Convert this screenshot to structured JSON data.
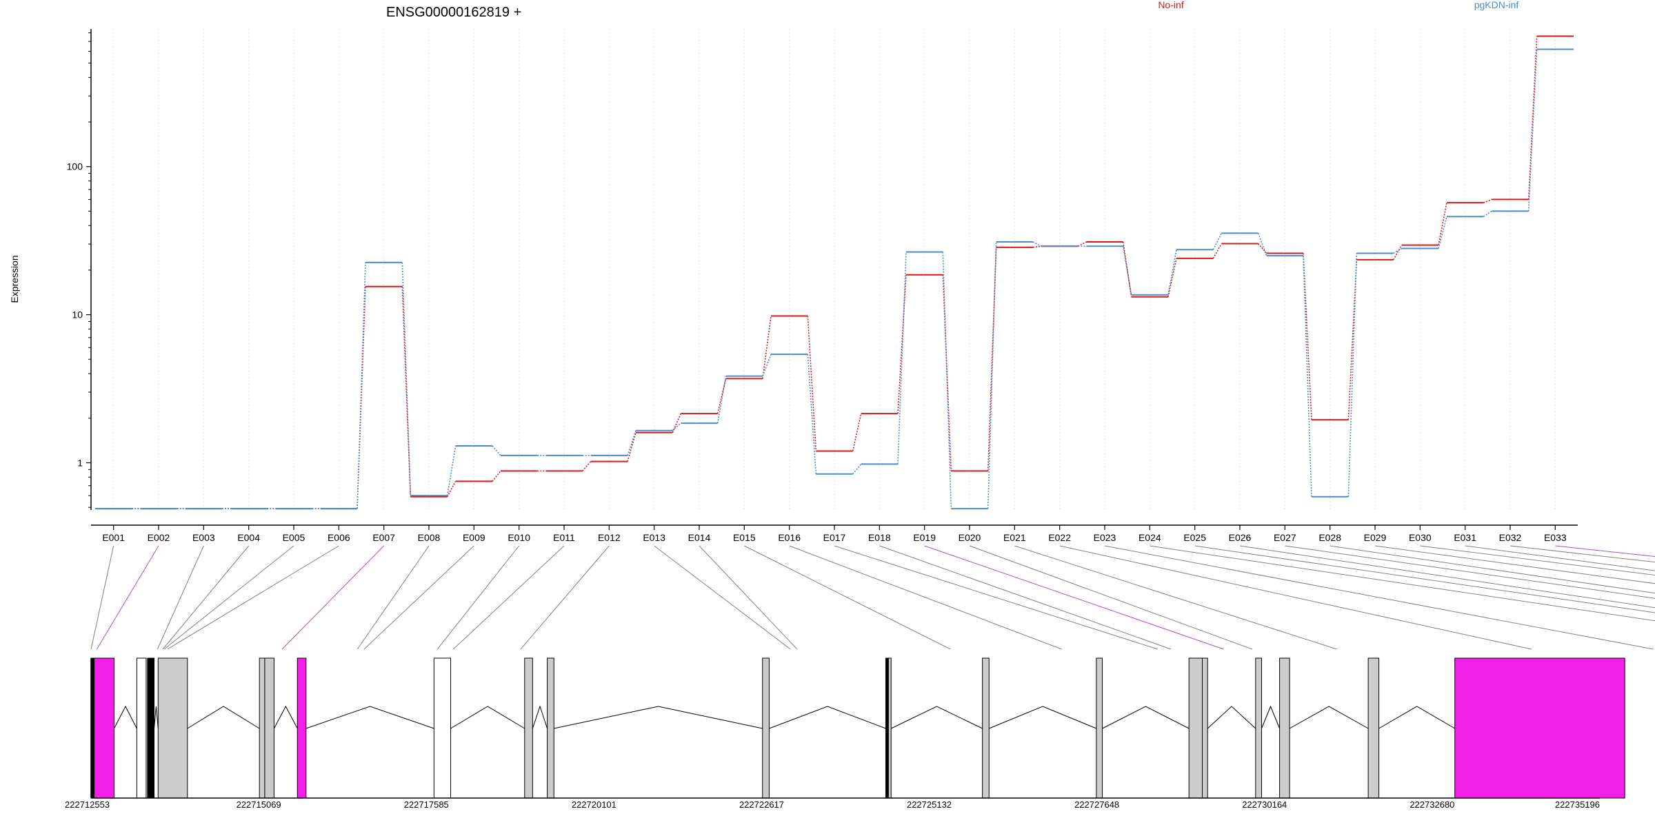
{
  "chart_data": {
    "type": "line",
    "title": "ENSG00000162819 +",
    "ylabel": "Expression",
    "xlabel": "",
    "yscale": "log",
    "ylim": [
      0.48,
      850
    ],
    "y_ticks": [
      {
        "value": 1,
        "label": "1"
      },
      {
        "value": 10,
        "label": "10"
      },
      {
        "value": 100,
        "label": "100"
      }
    ],
    "grid": "vertical dotted",
    "legend_placement": "top-right",
    "categories": [
      "E001",
      "E002",
      "E003",
      "E004",
      "E005",
      "E006",
      "E007",
      "E008",
      "E009",
      "E010",
      "E011",
      "E012",
      "E013",
      "E014",
      "E015",
      "E016",
      "E017",
      "E018",
      "E019",
      "E020",
      "E021",
      "E022",
      "E023",
      "E024",
      "E025",
      "E026",
      "E027",
      "E028",
      "E029",
      "E030",
      "E031",
      "E032",
      "E033"
    ],
    "series": [
      {
        "name": "No-inf",
        "color": "#d7191c",
        "values": [
          0.49,
          0.49,
          0.49,
          0.49,
          0.49,
          0.49,
          15.5,
          0.59,
          0.75,
          0.88,
          0.88,
          1.02,
          1.6,
          2.15,
          3.7,
          9.8,
          1.2,
          2.15,
          18.6,
          0.88,
          28.5,
          29,
          31,
          13.2,
          24,
          30.2,
          26,
          1.95,
          23.5,
          29.5,
          57,
          60,
          760
        ]
      },
      {
        "name": "pgKDN-inf",
        "color": "#4a8dc9",
        "values": [
          0.49,
          0.49,
          0.49,
          0.49,
          0.49,
          0.49,
          22.5,
          0.6,
          1.3,
          1.12,
          1.12,
          1.12,
          1.65,
          1.85,
          3.85,
          5.4,
          0.84,
          0.98,
          26.5,
          0.49,
          31,
          29,
          29,
          13.6,
          27.5,
          35.5,
          25,
          0.59,
          26,
          28,
          46,
          50,
          620
        ]
      }
    ],
    "gene_model": {
      "genomic_start": 222712553,
      "genomic_end": 222735196,
      "axis_ticks": [
        222712553,
        222715069,
        222717585,
        222720101,
        222722617,
        222725132,
        222727648,
        222730164,
        222732680,
        222735196
      ],
      "exon_mapping": [
        222712553,
        222712640,
        222713550,
        222713630,
        222713650,
        222713700,
        222715420,
        222716550,
        222716650,
        222717750,
        222717990,
        222719000,
        222723050,
        222723150,
        222725450,
        222727120,
        222728560,
        222728760,
        222729550,
        222729980,
        222731250,
        222734170,
        222736000,
        222738900,
        222739800,
        222740200,
        222741400,
        222741800,
        222743320,
        222744950,
        222745020,
        222747620,
        222749000
      ],
      "features": [
        {
          "start": 222712553,
          "end": 222712600,
          "type": "black"
        },
        {
          "start": 222712600,
          "end": 222712900,
          "type": "highlighted"
        },
        {
          "start": 222713240,
          "end": 222713380,
          "type": "outline"
        },
        {
          "start": 222713400,
          "end": 222713500,
          "type": "black"
        },
        {
          "start": 222713560,
          "end": 222714000,
          "type": "gray"
        },
        {
          "start": 222715080,
          "end": 222715160,
          "type": "gray"
        },
        {
          "start": 222715160,
          "end": 222715300,
          "type": "gray"
        },
        {
          "start": 222715650,
          "end": 222715780,
          "type": "highlighted"
        },
        {
          "start": 222717700,
          "end": 222717950,
          "type": "outline"
        },
        {
          "start": 222719060,
          "end": 222719180,
          "type": "gray"
        },
        {
          "start": 222719400,
          "end": 222719500,
          "type": "gray"
        },
        {
          "start": 222722630,
          "end": 222722730,
          "type": "gray"
        },
        {
          "start": 222724480,
          "end": 222724520,
          "type": "black"
        },
        {
          "start": 222724520,
          "end": 222724560,
          "type": "gray"
        },
        {
          "start": 222725930,
          "end": 222726030,
          "type": "gray"
        },
        {
          "start": 222727640,
          "end": 222727730,
          "type": "gray"
        },
        {
          "start": 222729030,
          "end": 222729230,
          "type": "gray"
        },
        {
          "start": 222729230,
          "end": 222729310,
          "type": "gray"
        },
        {
          "start": 222730030,
          "end": 222730120,
          "type": "gray"
        },
        {
          "start": 222730390,
          "end": 222730540,
          "type": "gray"
        },
        {
          "start": 222731720,
          "end": 222731880,
          "type": "gray"
        },
        {
          "start": 222733020,
          "end": 222735570,
          "type": "highlighted"
        }
      ],
      "colors": {
        "highlighted": "#f21fe6",
        "gray": "#cccccc",
        "outline": "#ffffff",
        "line": "#808080",
        "highlight_line": "#b04cc8"
      }
    }
  }
}
